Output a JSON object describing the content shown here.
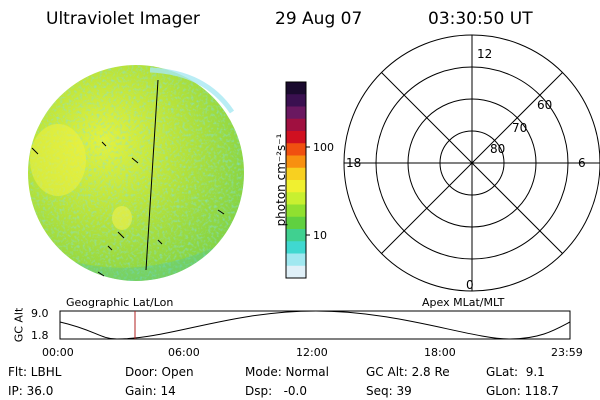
{
  "header": {
    "instrument": "Ultraviolet Imager",
    "date": "29 Aug 07",
    "time": "03:30:50 UT"
  },
  "colorbar": {
    "unit": "photon cm⁻²s⁻¹",
    "ticks": [
      "100",
      "10"
    ],
    "colors": [
      "#1a0a2e",
      "#3a1050",
      "#6a1860",
      "#a01040",
      "#d01020",
      "#f05010",
      "#f89010",
      "#f8d020",
      "#f0f030",
      "#c8f030",
      "#90e030",
      "#60d040",
      "#40d090",
      "#40d8d0",
      "#a0e8f0",
      "#e0f0f8"
    ]
  },
  "polar": {
    "hour_labels": [
      "12",
      "18",
      "6",
      "0"
    ],
    "lat_labels": [
      "60",
      "70",
      "80"
    ]
  },
  "orbit": {
    "left_label": "Geographic Lat/Lon",
    "right_label": "Apex MLat/MLT",
    "ylabel": "GC Alt",
    "y_ticks": [
      "9.0",
      "1.8"
    ],
    "x_ticks": [
      "00:00",
      "06:00",
      "12:00",
      "18:00",
      "23:59"
    ]
  },
  "footer": {
    "row1": [
      "Flt: LBHL",
      "Door: Open",
      "Mode: Normal",
      "GC Alt: 2.8 Re",
      "GLat:  9.1"
    ],
    "row2": [
      "IP: 36.0",
      "Gain: 14",
      "Dsp:   -0.0",
      "Seq: 39",
      "GLon: 118.7"
    ]
  }
}
